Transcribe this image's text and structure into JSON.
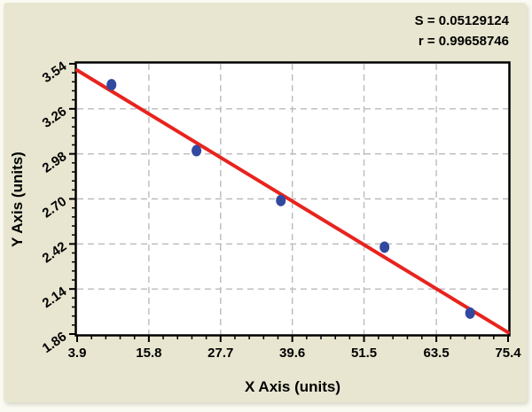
{
  "stats": {
    "s_display": "S = 0.05129124",
    "r_display": "r = 0.99658746"
  },
  "chart_data": {
    "type": "scatter",
    "title": "",
    "xlabel": "X Axis (units)",
    "ylabel": "Y Axis (units)",
    "xlim": [
      3.9,
      75.4
    ],
    "ylim": [
      1.86,
      3.54
    ],
    "x_ticks": [
      3.9,
      15.8,
      27.7,
      39.6,
      51.5,
      63.5,
      75.4
    ],
    "x_tick_labels": [
      "3.9",
      "15.8",
      "27.7",
      "39.6",
      "51.5",
      "63.5",
      "75.4"
    ],
    "y_ticks": [
      1.86,
      2.14,
      2.42,
      2.7,
      2.98,
      3.26,
      3.54
    ],
    "y_tick_labels": [
      "1.86",
      "2.14",
      "2.42",
      "2.70",
      "2.98",
      "3.26",
      "3.54"
    ],
    "minor_ticks_per_interval": 4,
    "grid": true,
    "legend_position": "none",
    "points": [
      {
        "x": 9.6,
        "y": 3.41
      },
      {
        "x": 23.7,
        "y": 3.0
      },
      {
        "x": 37.7,
        "y": 2.69
      },
      {
        "x": 54.9,
        "y": 2.4
      },
      {
        "x": 69.1,
        "y": 1.99
      }
    ],
    "regression_line": {
      "x1": 3.9,
      "y1": 3.5,
      "x2": 75.4,
      "y2": 1.87
    },
    "fit_stats": {
      "S": 0.05129124,
      "r": 0.99658746
    },
    "colors": {
      "background": "#e8e6d0",
      "plot_bg": "#ffffff",
      "line": "#e8231e",
      "point": "#3349a0",
      "grid": "#bbbbbb",
      "frame": "#000000",
      "text": "#000000"
    }
  }
}
